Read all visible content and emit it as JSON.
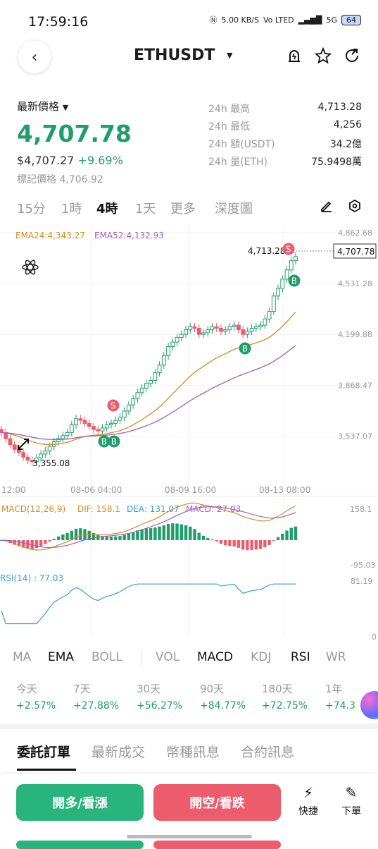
{
  "status": {
    "time": "17:59:16",
    "net": "5.00 KB/S",
    "volte": "Vo LTED",
    "sig": "5G",
    "battery": "64"
  },
  "header": {
    "symbol": "ETHUSDT"
  },
  "price": {
    "latest_label": "最新價格",
    "last": "4,707.78",
    "usd": "$4,707.27",
    "change": "+9.69%",
    "mark_label": "標記價格",
    "mark": "4,706.92",
    "stats": [
      {
        "k": "24h 最高",
        "v": "4,713.28"
      },
      {
        "k": "24h 最低",
        "v": "4,256"
      },
      {
        "k": "24h 額(USDT)",
        "v": "34.2億"
      },
      {
        "k": "24h 量(ETH)",
        "v": "75.9498萬"
      }
    ]
  },
  "timeframes": [
    "15分",
    "1時",
    "4時",
    "1天",
    "更多",
    "深度圖"
  ],
  "active_timeframe": 2,
  "chart_data": {
    "type": "candlestick",
    "ema24_label": "EMA24:4,343.27",
    "ema52_label": "EMA52:4,132.93",
    "y_ticks": [
      "4,862.68",
      "4,531.28",
      "4,199.88",
      "3,868.47",
      "3,537.07"
    ],
    "x_ticks": [
      "12:00",
      "08-06 04:00",
      "08-09 16:00",
      "08-13 08:00"
    ],
    "high_label": "4,713.28",
    "low_label": "3,355.08",
    "last_price_tag": "4,707.78",
    "signals": [
      "S",
      "B",
      "B",
      "B",
      "S",
      "B"
    ],
    "closes": [
      3560,
      3520,
      3480,
      3450,
      3430,
      3400,
      3380,
      3370,
      3395,
      3420,
      3440,
      3470,
      3500,
      3520,
      3540,
      3560,
      3610,
      3650,
      3640,
      3620,
      3600,
      3580,
      3570,
      3590,
      3610,
      3620,
      3640,
      3660,
      3700,
      3740,
      3780,
      3820,
      3850,
      3880,
      3900,
      3950,
      4000,
      4060,
      4120,
      4150,
      4180,
      4200,
      4230,
      4250,
      4240,
      4200,
      4210,
      4230,
      4250,
      4240,
      4220,
      4230,
      4250,
      4260,
      4230,
      4200,
      4220,
      4240,
      4250,
      4260,
      4300,
      4350,
      4450,
      4500,
      4560,
      4620,
      4680,
      4707
    ]
  },
  "macd": {
    "label": "MACD(12,26,9)",
    "dif": "DIF: 158.1",
    "dea": "DEA: 131.07",
    "macd": "MACD: 27.03",
    "top": "158.1",
    "bottom": "-95.03"
  },
  "rsi": {
    "label": "RSI(14) : 77.03",
    "top": "81.19",
    "bottom": "0"
  },
  "indicators": [
    "MA",
    "EMA",
    "BOLL",
    "VOL",
    "MACD",
    "KDJ",
    "RSI",
    "WR"
  ],
  "performance": [
    {
      "label": "今天",
      "value": "+2.57%"
    },
    {
      "label": "7天",
      "value": "+27.88%"
    },
    {
      "label": "30天",
      "value": "+56.27%"
    },
    {
      "label": "90天",
      "value": "+84.77%"
    },
    {
      "label": "180天",
      "value": "+72.75%"
    },
    {
      "label": "1年",
      "value": "+74.3"
    }
  ],
  "tabs": [
    "委託訂單",
    "最新成交",
    "幣種訊息",
    "合約訊息"
  ],
  "actions": {
    "buy": "開多/看漲",
    "sell": "開空/看跌",
    "quick": "快捷",
    "order": "下單"
  },
  "colors": {
    "up": "#1f9d6a",
    "down": "#ec5c6c",
    "ema24": "#d88a1c",
    "ema52": "#a05cc8"
  }
}
